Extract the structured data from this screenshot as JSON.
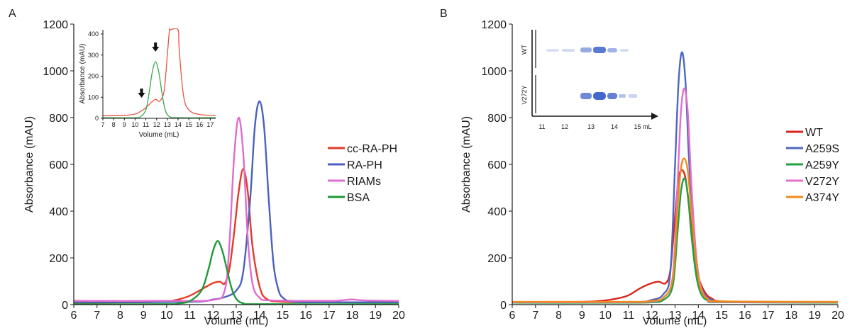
{
  "panels": [
    {
      "letter": "A"
    },
    {
      "letter": "B"
    }
  ],
  "chart_data": [
    {
      "panel": "A",
      "type": "line",
      "xlabel": "Volume (mL)",
      "ylabel": "Absorbance (mAU)",
      "xlim": [
        6,
        20
      ],
      "ylim": [
        0,
        1200
      ],
      "xticks": [
        6,
        7,
        8,
        9,
        10,
        11,
        12,
        13,
        14,
        15,
        16,
        17,
        18,
        19,
        20
      ],
      "yticks": [
        0,
        200,
        400,
        600,
        800,
        1000,
        1200
      ],
      "grid": false,
      "legend": "right",
      "series": [
        {
          "name": "cc-RA-PH",
          "color": "#e33b27",
          "x": [
            6,
            9,
            10,
            10.5,
            11,
            11.5,
            12,
            12.3,
            12.5,
            12.7,
            12.9,
            13.1,
            13.3,
            13.5,
            13.7,
            14,
            14.3,
            15,
            17,
            20
          ],
          "y": [
            8,
            10,
            14,
            22,
            38,
            65,
            92,
            98,
            90,
            150,
            300,
            480,
            580,
            480,
            250,
            80,
            25,
            12,
            10,
            10
          ]
        },
        {
          "name": "RA-PH",
          "color": "#4a62bd",
          "x": [
            6,
            11,
            12,
            12.5,
            13,
            13.3,
            13.6,
            13.8,
            14,
            14.2,
            14.4,
            14.6,
            14.8,
            15,
            15.5,
            17,
            20
          ],
          "y": [
            10,
            12,
            22,
            32,
            60,
            140,
            450,
            760,
            870,
            760,
            450,
            180,
            70,
            30,
            12,
            10,
            10
          ]
        },
        {
          "name": "RIAMs",
          "color": "#e06ccd",
          "x": [
            6,
            10,
            12,
            12.5,
            12.7,
            12.9,
            13.1,
            13.3,
            13.5,
            13.7,
            14,
            14.5,
            17,
            17.5,
            18,
            18.5,
            20
          ],
          "y": [
            16,
            16,
            20,
            60,
            250,
            620,
            800,
            650,
            280,
            90,
            30,
            18,
            16,
            18,
            22,
            18,
            16
          ]
        },
        {
          "name": "BSA",
          "color": "#1f9a3a",
          "x": [
            6,
            10,
            10.5,
            11,
            11.5,
            11.8,
            12,
            12.2,
            12.4,
            12.6,
            12.8,
            13,
            13.3,
            14,
            20
          ],
          "y": [
            2,
            2,
            5,
            15,
            60,
            150,
            230,
            272,
            230,
            150,
            70,
            25,
            6,
            2,
            2
          ]
        }
      ],
      "inset": {
        "type": "line",
        "xlabel": "Volume (mL)",
        "ylabel": "Absorbance (mAU)",
        "xlim": [
          7,
          17.5
        ],
        "ylim": [
          0,
          420
        ],
        "xticks": [
          7,
          8,
          9,
          10,
          11,
          12,
          13,
          14,
          15,
          16,
          17
        ],
        "yticks": [
          0,
          100,
          200,
          300,
          400
        ],
        "arrows_at_x": [
          10.6,
          11.9
        ],
        "series": [
          {
            "color": "#e8553e",
            "x": [
              7,
              9,
              10,
              10.5,
              11,
              11.5,
              11.9,
              12.3,
              12.7,
              13,
              13.2,
              13.3,
              14,
              14.1,
              14.5,
              15,
              16,
              17.5
            ],
            "y": [
              12,
              14,
              20,
              32,
              50,
              75,
              90,
              82,
              130,
              300,
              420,
              420,
              420,
              330,
              110,
              40,
              18,
              14
            ]
          },
          {
            "color": "#3aa84a",
            "x": [
              7,
              10,
              10.5,
              11,
              11.3,
              11.6,
              11.9,
              12.2,
              12.5,
              12.8,
              13.2,
              14,
              17.5
            ],
            "y": [
              3,
              3,
              8,
              40,
              120,
              220,
              268,
              220,
              120,
              40,
              8,
              3,
              3
            ]
          }
        ]
      }
    },
    {
      "panel": "B",
      "type": "line",
      "xlabel": "Volume (mL)",
      "ylabel": "Absorbance (mAU)",
      "xlim": [
        6,
        20
      ],
      "ylim": [
        0,
        1200
      ],
      "xticks": [
        6,
        7,
        8,
        9,
        10,
        11,
        12,
        13,
        14,
        15,
        16,
        17,
        18,
        19,
        20
      ],
      "yticks": [
        0,
        200,
        400,
        600,
        800,
        1000,
        1200
      ],
      "grid": false,
      "legend": "right",
      "series": [
        {
          "name": "WT",
          "color": "#d8251b",
          "x": [
            6,
            9,
            10,
            10.5,
            11,
            11.5,
            12,
            12.3,
            12.6,
            12.8,
            13,
            13.15,
            13.3,
            13.45,
            13.6,
            13.8,
            14,
            14.3,
            14.6,
            15,
            17,
            20
          ],
          "y": [
            10,
            12,
            18,
            26,
            40,
            70,
            92,
            98,
            92,
            150,
            380,
            540,
            575,
            540,
            420,
            240,
            120,
            50,
            25,
            14,
            12,
            10
          ]
        },
        {
          "name": "A259S",
          "color": "#4f66c2",
          "x": [
            6,
            11,
            12,
            12.5,
            12.8,
            13,
            13.15,
            13.3,
            13.45,
            13.6,
            13.8,
            14,
            14.3,
            14.6,
            15,
            17,
            20
          ],
          "y": [
            8,
            10,
            20,
            45,
            140,
            600,
            950,
            1080,
            950,
            620,
            280,
            110,
            40,
            20,
            12,
            10,
            10
          ]
        },
        {
          "name": "A259Y",
          "color": "#23a142",
          "x": [
            6,
            11,
            12,
            12.5,
            12.9,
            13.1,
            13.25,
            13.4,
            13.55,
            13.7,
            13.9,
            14.1,
            14.4,
            15,
            20
          ],
          "y": [
            8,
            8,
            10,
            20,
            80,
            300,
            480,
            540,
            470,
            300,
            130,
            50,
            18,
            10,
            8
          ]
        },
        {
          "name": "V272Y",
          "color": "#e46fd0",
          "x": [
            6,
            11,
            12,
            12.5,
            12.9,
            13.1,
            13.25,
            13.4,
            13.55,
            13.7,
            13.9,
            14.1,
            14.4,
            15,
            20
          ],
          "y": [
            10,
            10,
            14,
            30,
            120,
            500,
            820,
            925,
            820,
            520,
            220,
            80,
            25,
            12,
            10
          ]
        },
        {
          "name": "A374Y",
          "color": "#f08a1a",
          "x": [
            6,
            11,
            12,
            12.5,
            12.9,
            13.1,
            13.25,
            13.4,
            13.55,
            13.7,
            13.9,
            14.1,
            14.4,
            15,
            20
          ],
          "y": [
            12,
            12,
            16,
            30,
            110,
            400,
            580,
            625,
            570,
            400,
            190,
            70,
            25,
            14,
            12
          ]
        }
      ],
      "inset_gel": {
        "lane_labels": [
          "WT",
          "V272Y"
        ],
        "axis_ticks": [
          "11",
          "12",
          "13",
          "14",
          "15 mL"
        ],
        "band_color": "#2f57c8"
      }
    }
  ]
}
